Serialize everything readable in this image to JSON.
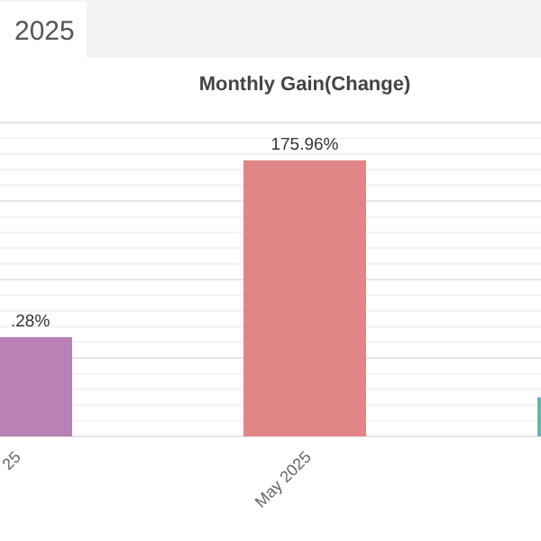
{
  "chart_data": {
    "type": "bar",
    "title": "Monthly Gain(Change)",
    "annotations": [
      "2025",
      {
        "text": ".28%",
        "x": "25",
        "y": 63.28
      }
    ],
    "categories": [
      "25",
      "May 2025",
      null
    ],
    "values": [
      63.28,
      175.96,
      25
    ],
    "value_labels": [
      null,
      "175.96%",
      null
    ],
    "colors": [
      "#b882b6",
      "#e08686",
      "#5cb9b1"
    ],
    "ylim": [
      0,
      200
    ],
    "yticks": [
      {
        "value": 0,
        "label": null
      },
      {
        "value": 10,
        "label": null
      },
      {
        "value": 20,
        "label": null
      },
      {
        "value": 30,
        "label": null
      },
      {
        "value": 40,
        "label": null
      },
      {
        "value": 50,
        "label": null
      },
      {
        "value": 60,
        "label": null
      },
      {
        "value": 70,
        "label": null
      },
      {
        "value": 80,
        "label": null
      },
      {
        "value": 90,
        "label": null
      },
      {
        "value": 100,
        "label": null
      },
      {
        "value": 110,
        "label": null
      },
      {
        "value": 120,
        "label": null
      },
      {
        "value": 130,
        "label": null
      },
      {
        "value": 140,
        "label": null
      },
      {
        "value": 150,
        "label": null
      },
      {
        "value": 160,
        "label": null
      },
      {
        "value": 170,
        "label": null
      },
      {
        "value": 180,
        "label": null
      },
      {
        "value": 190,
        "label": null
      },
      {
        "value": 200,
        "label": null
      }
    ],
    "grid": "y",
    "tick_labels": "x"
  }
}
